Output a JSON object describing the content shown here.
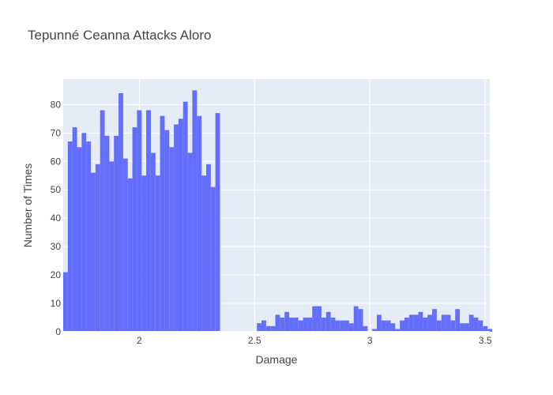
{
  "chart_data": {
    "type": "bar",
    "title": "Tepunné Ceanna Attacks Aloro",
    "xlabel": "Damage",
    "ylabel": "Number of Times",
    "xlim": [
      1.67,
      3.52
    ],
    "ylim": [
      0,
      89
    ],
    "x_ticks": [
      2,
      2.5,
      3,
      3.5
    ],
    "x_tick_labels": [
      "2",
      "2.5",
      "3",
      "3.5"
    ],
    "y_ticks": [
      0,
      10,
      20,
      30,
      40,
      50,
      60,
      70,
      80
    ],
    "y_tick_labels": [
      "0",
      "10",
      "20",
      "30",
      "40",
      "50",
      "60",
      "70",
      "80"
    ],
    "bin_start": 1.67,
    "bin_width": 0.02,
    "values": [
      21,
      67,
      72,
      65,
      70,
      67,
      56,
      59,
      78,
      69,
      60,
      69,
      84,
      61,
      54,
      72,
      78,
      55,
      78,
      63,
      55,
      76,
      71,
      65,
      73,
      75,
      81,
      63,
      85,
      76,
      55,
      59,
      51,
      77,
      0,
      0,
      0,
      0,
      0,
      0,
      0,
      0,
      3,
      4,
      2,
      2,
      6,
      5,
      7,
      5,
      5,
      4,
      5,
      5,
      9,
      9,
      5,
      7,
      5,
      4,
      4,
      4,
      3,
      9,
      8,
      2,
      0,
      1,
      6,
      4,
      4,
      3,
      1,
      4,
      5,
      6,
      6,
      7,
      5,
      6,
      8,
      4,
      6,
      6,
      4,
      8,
      3,
      3,
      6,
      5,
      4,
      2,
      1
    ],
    "bar_color": "#636efa",
    "plot_bgcolor": "#e5ecf6",
    "grid": true,
    "legend": "none"
  }
}
